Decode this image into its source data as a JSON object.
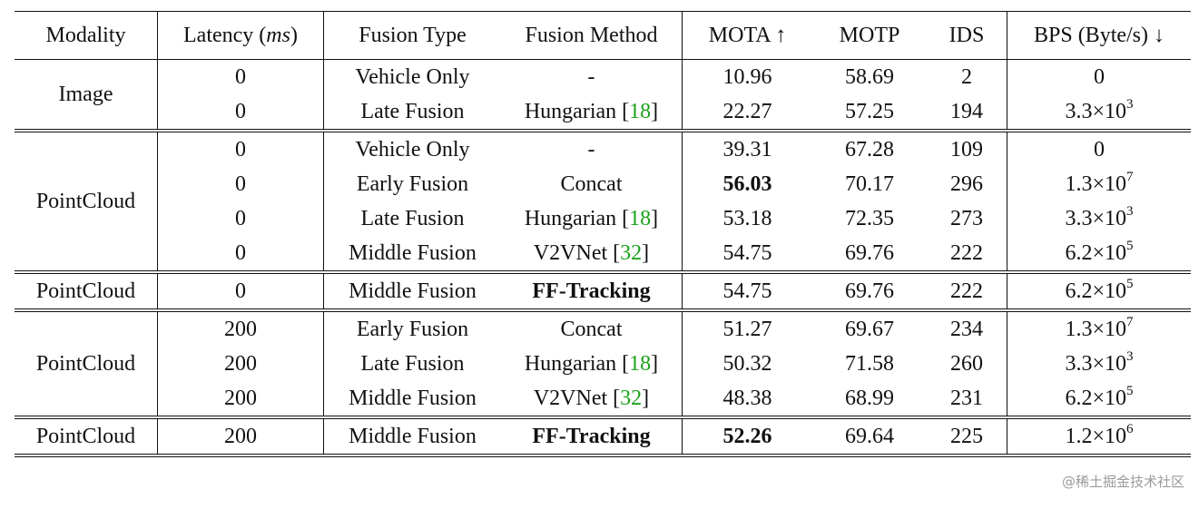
{
  "headers": {
    "modality": "Modality",
    "latency": "Latency (ms)",
    "fusion_type": "Fusion Type",
    "fusion_method": "Fusion Method",
    "mota": "MOTA ↑",
    "motp": "MOTP",
    "ids": "IDS",
    "bps": "BPS (Byte/s) ↓"
  },
  "groups": [
    {
      "modality": "Image",
      "rows": [
        {
          "latency": "0",
          "fusion_type": "Vehicle Only",
          "method": "-",
          "cite": "",
          "mota": "10.96",
          "motp": "58.69",
          "ids": "2",
          "bps_base": "0",
          "bps_exp": ""
        },
        {
          "latency": "0",
          "fusion_type": "Late Fusion",
          "method": "Hungarian",
          "cite": "18",
          "mota": "22.27",
          "motp": "57.25",
          "ids": "194",
          "bps_base": "3.3×10",
          "bps_exp": "3"
        }
      ]
    },
    {
      "modality": "PointCloud",
      "rows": [
        {
          "latency": "0",
          "fusion_type": "Vehicle Only",
          "method": "-",
          "cite": "",
          "mota": "39.31",
          "motp": "67.28",
          "ids": "109",
          "bps_base": "0",
          "bps_exp": ""
        },
        {
          "latency": "0",
          "fusion_type": "Early Fusion",
          "method": "Concat",
          "cite": "",
          "mota": "56.03",
          "motp": "70.17",
          "ids": "296",
          "bps_base": "1.3×10",
          "bps_exp": "7"
        },
        {
          "latency": "0",
          "fusion_type": "Late Fusion",
          "method": "Hungarian",
          "cite": "18",
          "mota": "53.18",
          "motp": "72.35",
          "ids": "273",
          "bps_base": "3.3×10",
          "bps_exp": "3"
        },
        {
          "latency": "0",
          "fusion_type": "Middle Fusion",
          "method": "V2VNet",
          "cite": "32",
          "mota": "54.75",
          "motp": "69.76",
          "ids": "222",
          "bps_base": "6.2×10",
          "bps_exp": "5"
        }
      ]
    },
    {
      "modality": "PointCloud",
      "rows": [
        {
          "latency": "0",
          "fusion_type": "Middle Fusion",
          "method": "FF-Tracking",
          "cite": "",
          "mota": "54.75",
          "motp": "69.76",
          "ids": "222",
          "bps_base": "6.2×10",
          "bps_exp": "5"
        }
      ]
    },
    {
      "modality": "PointCloud",
      "rows": [
        {
          "latency": "200",
          "fusion_type": "Early Fusion",
          "method": "Concat",
          "cite": "",
          "mota": "51.27",
          "motp": "69.67",
          "ids": "234",
          "bps_base": "1.3×10",
          "bps_exp": "7"
        },
        {
          "latency": "200",
          "fusion_type": "Late Fusion",
          "method": "Hungarian",
          "cite": "18",
          "mota": "50.32",
          "motp": "71.58",
          "ids": "260",
          "bps_base": "3.3×10",
          "bps_exp": "3"
        },
        {
          "latency": "200",
          "fusion_type": "Middle Fusion",
          "method": "V2VNet",
          "cite": "32",
          "mota": "48.38",
          "motp": "68.99",
          "ids": "231",
          "bps_base": "6.2×10",
          "bps_exp": "5"
        }
      ]
    },
    {
      "modality": "PointCloud",
      "rows": [
        {
          "latency": "200",
          "fusion_type": "Middle Fusion",
          "method": "FF-Tracking",
          "cite": "",
          "mota": "52.26",
          "motp": "69.64",
          "ids": "225",
          "bps_base": "1.2×10",
          "bps_exp": "6"
        }
      ]
    }
  ],
  "watermark": "@稀土掘金技术社区"
}
